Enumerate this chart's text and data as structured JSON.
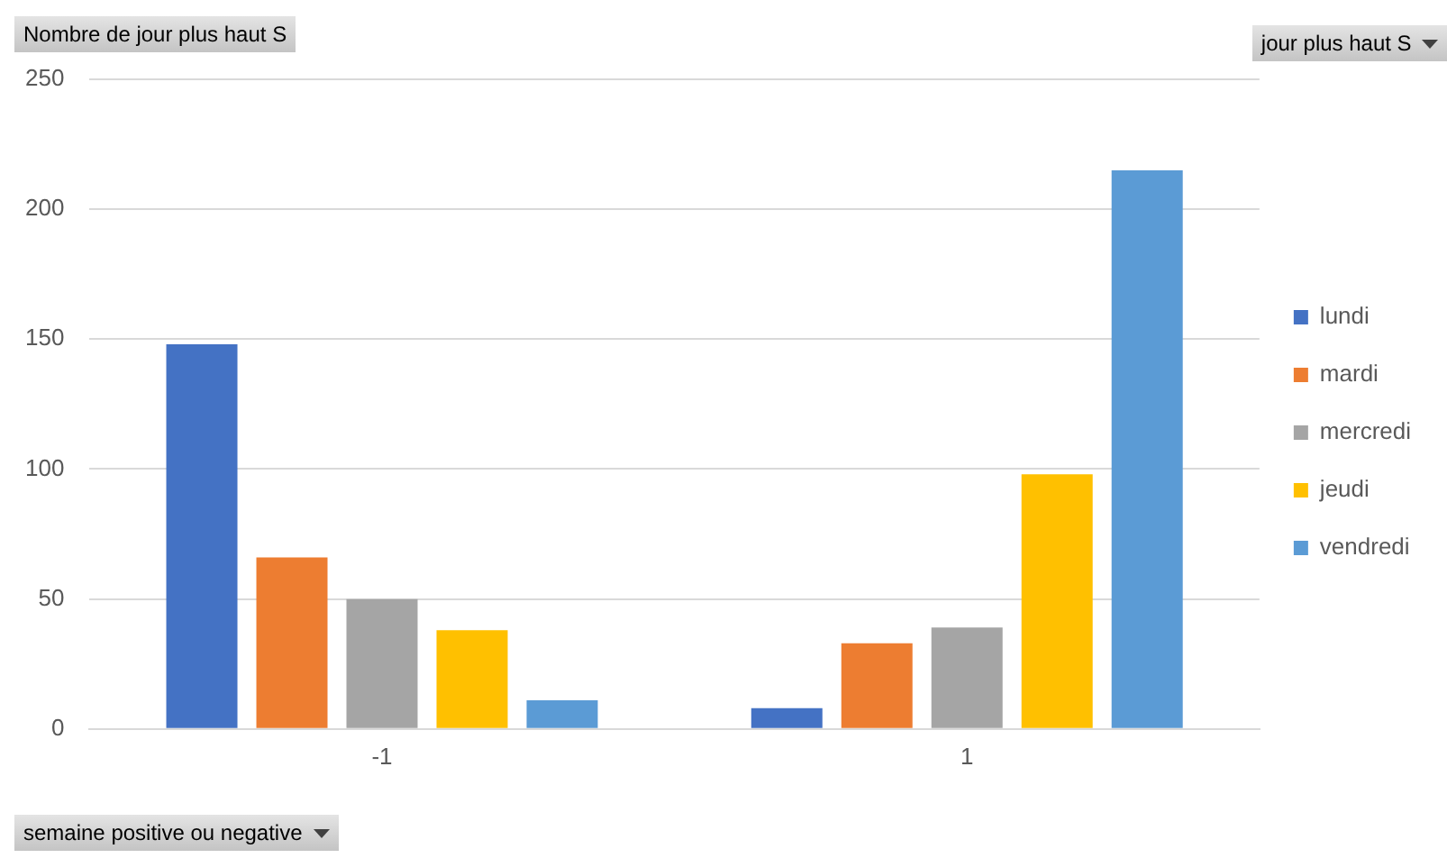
{
  "chart_data": {
    "type": "bar",
    "ylabel": "Nombre de jour plus haut S",
    "xlabel": "semaine positive ou negative",
    "legend_title": "jour plus haut S",
    "categories": [
      "-1",
      "1"
    ],
    "series": [
      {
        "name": "lundi",
        "color": "#4472c4",
        "values": [
          148,
          8
        ]
      },
      {
        "name": "mardi",
        "color": "#ed7d31",
        "values": [
          66,
          33
        ]
      },
      {
        "name": "mercredi",
        "color": "#a5a5a5",
        "values": [
          50,
          39
        ]
      },
      {
        "name": "jeudi",
        "color": "#ffc000",
        "values": [
          38,
          98
        ]
      },
      {
        "name": "vendredi",
        "color": "#5b9bd5",
        "values": [
          11,
          215
        ]
      }
    ],
    "ylim": [
      0,
      250
    ],
    "yticks": [
      0,
      50,
      100,
      150,
      200,
      250
    ],
    "grid": "y",
    "legend": "right"
  }
}
